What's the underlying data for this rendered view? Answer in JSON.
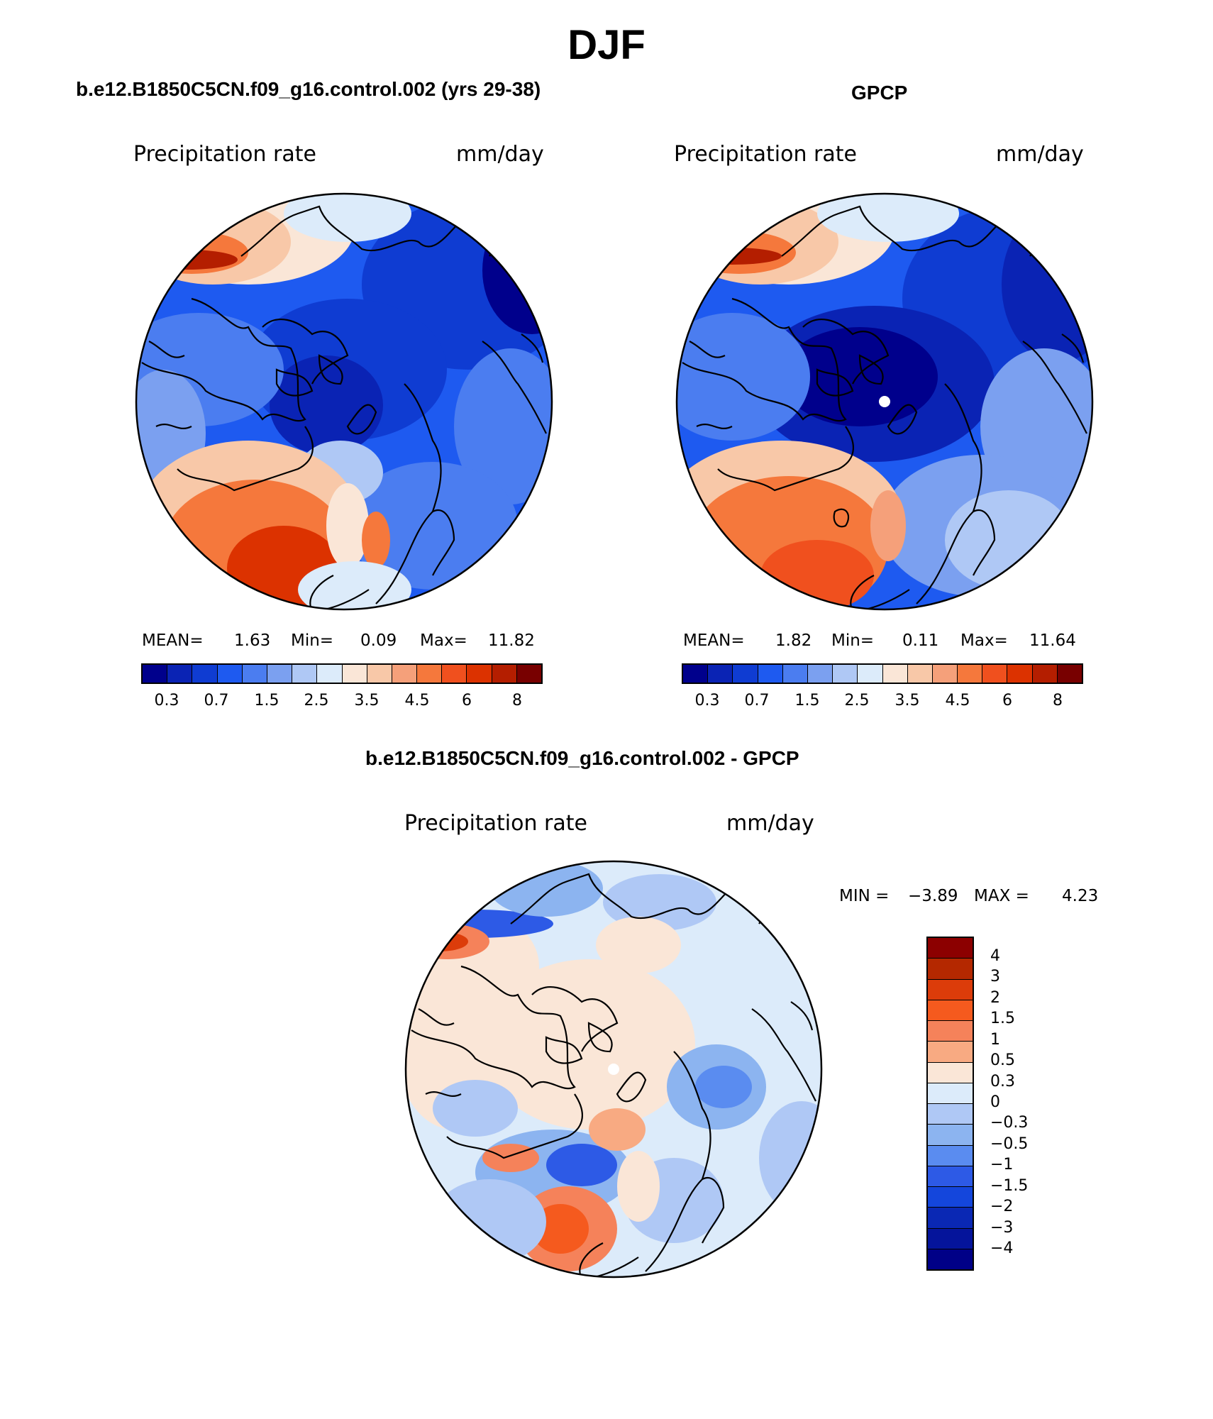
{
  "main_title": "DJF",
  "panels": [
    {
      "title": "b.e12.B1850C5CN.f09_g16.control.002 (yrs 29-38)",
      "left_label": "Precipitation rate",
      "right_label": "mm/day",
      "stats": {
        "mean_label": "MEAN=",
        "mean": "1.63",
        "min_label": "Min=",
        "min": "0.09",
        "max_label": "Max=",
        "max": "11.82"
      }
    },
    {
      "title": "GPCP",
      "left_label": "Precipitation rate",
      "right_label": "mm/day",
      "stats": {
        "mean_label": "MEAN=",
        "mean": "1.82",
        "min_label": "Min=",
        "min": "0.11",
        "max_label": "Max=",
        "max": "11.64"
      }
    }
  ],
  "diff_panel": {
    "title": "b.e12.B1850C5CN.f09_g16.control.002 - GPCP",
    "left_label": "Precipitation rate",
    "right_label": "mm/day",
    "min_label": "MIN =",
    "min": "−3.89",
    "max_label": "MAX =",
    "max": "4.23"
  },
  "colorbar_abs": {
    "colors": [
      "#00008c",
      "#0a23b4",
      "#0f3cd2",
      "#1e5af0",
      "#4b7df0",
      "#7ba0f0",
      "#afc8f5",
      "#dcebfa",
      "#fae6d7",
      "#f8c8a8",
      "#f5a07a",
      "#f5783c",
      "#f0501e",
      "#dc3200",
      "#b41e00",
      "#780000"
    ],
    "ticks": [
      "0.3",
      "0.7",
      "1.5",
      "2.5",
      "3.5",
      "4.5",
      "6",
      "8"
    ]
  },
  "colorbar_diff": {
    "colors": [
      "#8c0000",
      "#b42800",
      "#dc3c0a",
      "#f55a1e",
      "#f5825a",
      "#f8aa82",
      "#fae6d7",
      "#dcebfa",
      "#afc8f5",
      "#8cb4f0",
      "#5a8cf0",
      "#2d5ae6",
      "#1446dc",
      "#0a28b4",
      "#05149b",
      "#000087"
    ],
    "ticks": [
      "4",
      "3",
      "2",
      "1.5",
      "1",
      "0.5",
      "0.3",
      "0",
      "−0.3",
      "−0.5",
      "−1",
      "−1.5",
      "−2",
      "−3",
      "−4"
    ]
  }
}
